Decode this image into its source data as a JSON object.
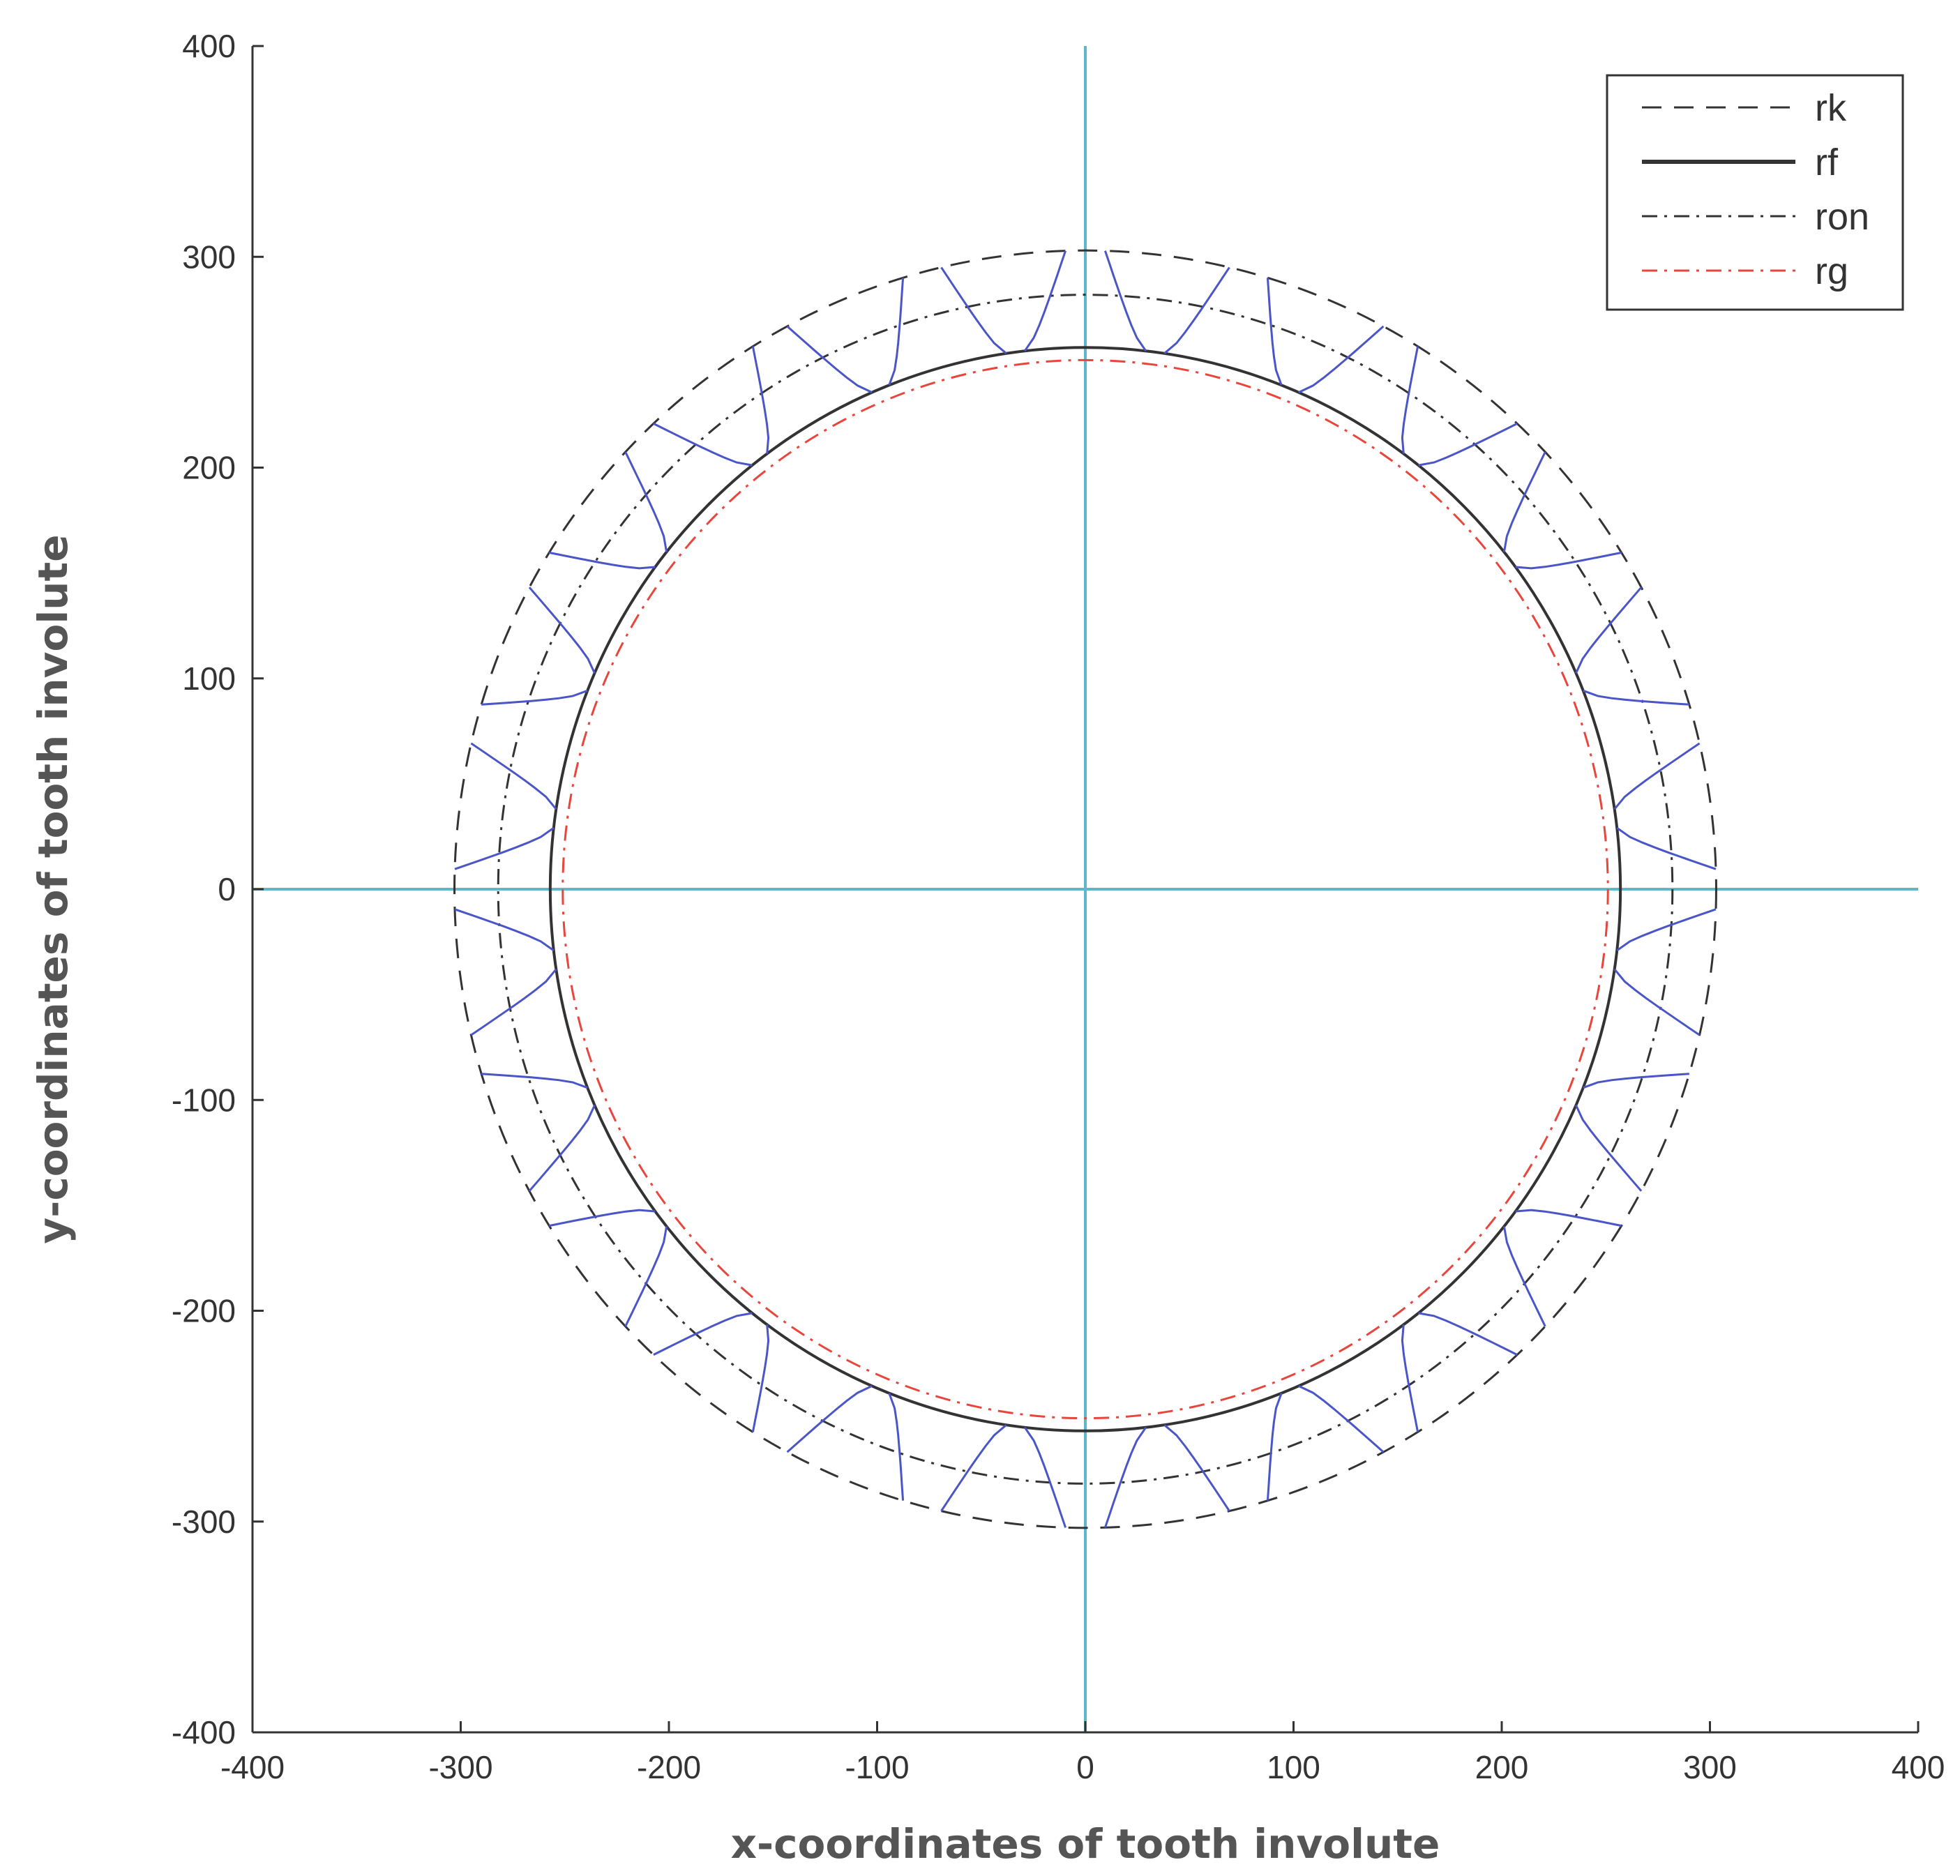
{
  "chart_data": {
    "type": "line",
    "title": "",
    "xlabel": "x-coordinates of tooth involute",
    "ylabel": "y-coordinates of tooth involute",
    "xlim": [
      -400,
      400
    ],
    "ylim": [
      -400,
      400
    ],
    "xticks": [
      -400,
      -300,
      -200,
      -100,
      0,
      100,
      200,
      300,
      400
    ],
    "yticks": [
      -400,
      -300,
      -200,
      -100,
      0,
      100,
      200,
      300,
      400
    ],
    "grid": false,
    "legend_position": "top-right",
    "reference_lines": {
      "x": 0,
      "y": 0,
      "color": "#5fb8c9"
    },
    "series": [
      {
        "name": "rk",
        "kind": "circle",
        "radius": 303,
        "style": "dashed",
        "color": "#333333"
      },
      {
        "name": "rf",
        "kind": "circle",
        "radius": 257,
        "style": "solid",
        "color": "#333333"
      },
      {
        "name": "ron",
        "kind": "circle",
        "radius": 282,
        "style": "dash-dot",
        "color": "#333333"
      },
      {
        "name": "rg",
        "kind": "circle",
        "radius": 251,
        "style": "dash-dot",
        "color": "#e8463c"
      }
    ],
    "teeth": {
      "count": 24,
      "color": "#4a55c8",
      "r_root": 257,
      "r_tip": 303,
      "root_half_angle_deg": 6.5,
      "tip_half_angle_deg": 1.8
    }
  }
}
